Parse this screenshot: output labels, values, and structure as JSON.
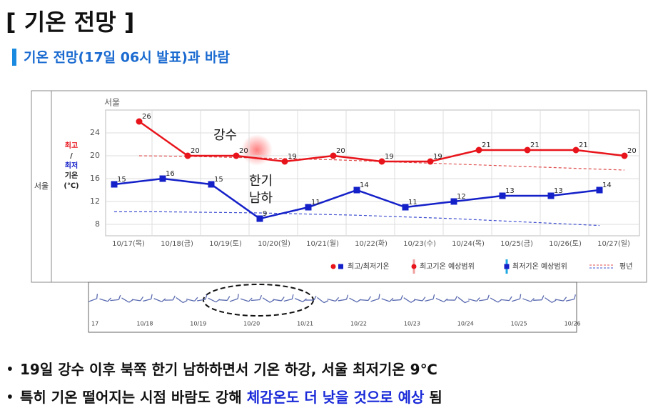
{
  "header": {
    "title": "[ 기온 전망 ]",
    "subtitle": "기온 전망(17일 06시 발표)과 바람"
  },
  "chart_data": {
    "type": "line",
    "row_label": "서울",
    "station": "서울",
    "y_axis_title": [
      "최고",
      "/",
      "최저",
      "기온",
      "(℃)"
    ],
    "categories": [
      "10/17(목)",
      "10/18(금)",
      "10/19(토)",
      "10/20(일)",
      "10/21(월)",
      "10/22(화)",
      "10/23(수)",
      "10/24(목)",
      "10/25(금)",
      "10/26(토)",
      "10/27(일)"
    ],
    "series": [
      {
        "color": "#e8141b",
        "values": [
          26,
          20,
          20,
          19,
          20,
          19,
          19,
          21,
          21,
          21,
          20
        ]
      },
      {
        "color": "#1420c8",
        "values": [
          15,
          16,
          15,
          9,
          11,
          14,
          11,
          12,
          13,
          13,
          14
        ]
      }
    ],
    "normals": [
      {
        "color": "#e05050",
        "values": [
          20.0,
          19.9,
          19.7,
          19.5,
          19.3,
          19.0,
          18.7,
          18.4,
          18.1,
          17.8,
          17.5
        ]
      },
      {
        "color": "#4050d0",
        "values": [
          10.2,
          10.2,
          10.1,
          10.0,
          9.8,
          9.6,
          9.3,
          9.0,
          8.6,
          8.2,
          7.8
        ]
      }
    ],
    "ylim": [
      6,
      28
    ],
    "yticks": [
      8,
      12,
      16,
      20,
      24
    ],
    "grid": true,
    "annotations": [
      "강수",
      "한기",
      "남하"
    ],
    "legend": [
      "최고/최저기온",
      "최고기온 예상범위",
      "최저기온 예상범위",
      "평년"
    ]
  },
  "wind": {
    "labels": [
      "17",
      "10/18",
      "10/19",
      "10/20",
      "10/21",
      "10/22",
      "10/23",
      "10/24",
      "10/25",
      "10/26"
    ]
  },
  "bullets": [
    {
      "parts": [
        "19일 강수 이후 북쪽 한기 남하하면서 기온 하강, 서울 최저기온 9℃"
      ]
    },
    {
      "parts": [
        "특히 기온 떨어지는 시점 바람도 강해 ",
        "체감온도 더 낮을 것으로 예상",
        " 됨"
      ]
    }
  ]
}
